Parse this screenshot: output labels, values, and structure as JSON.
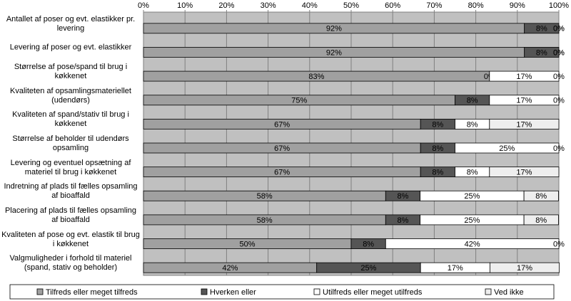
{
  "chart_data": {
    "type": "stacked-bar-horizontal",
    "categories": [
      "Antallet af poser og evt. elastikker pr. levering",
      "Levering af poser og evt. elastikker",
      "Størrelse af pose/spand til brug i køkkenet",
      "Kvaliteten af opsamlingsmateriellet (udendørs)",
      "Kvaliteten af spand/stativ til brug i køkkenet",
      "Størrelse af beholder til udendørs opsamling",
      "Levering og eventuel opsætning af materiel til brug i køkkenet",
      "Indretning af plads til fælles opsamling af bioaffald",
      "Placering af plads til fælles opsamling af bioaffald",
      "Kvaliteten af pose og evt. elastik til brug i køkkenet",
      "Valgmuligheder i forhold til materiel (spand, stativ og beholder)"
    ],
    "series": [
      {
        "name": "Tilfreds eller meget tilfreds",
        "color": "#a0a0a0",
        "values": [
          91.7,
          91.7,
          83.3,
          75,
          66.7,
          66.7,
          66.7,
          58.3,
          58.3,
          50,
          41.7
        ],
        "value_labels": [
          "92%",
          "92%",
          "83%",
          "75%",
          "67%",
          "67%",
          "67%",
          "58%",
          "58%",
          "50%",
          "42%"
        ]
      },
      {
        "name": "Hverken eller",
        "color": "#555555",
        "values": [
          8.3,
          8.3,
          0,
          8.3,
          8.3,
          8.3,
          8.3,
          8.3,
          8.3,
          8.3,
          25
        ],
        "value_labels": [
          "8%",
          "8%",
          "0%",
          "8%",
          "8%",
          "8%",
          "8%",
          "8%",
          "8%",
          "8%",
          "25%"
        ]
      },
      {
        "name": "Utilfreds eller meget utilfreds",
        "color": "#ffffff",
        "values": [
          0,
          0,
          16.7,
          16.7,
          8.3,
          25,
          8.3,
          25,
          25,
          41.7,
          16.7
        ],
        "value_labels": [
          "0%",
          "0%",
          "17%",
          "17%",
          "8%",
          "25%",
          "8%",
          "25%",
          "25%",
          "42%",
          "17%"
        ]
      },
      {
        "name": "Ved ikke",
        "color": "#eeeeee",
        "values": [
          0,
          0,
          0,
          0,
          16.7,
          0,
          16.7,
          8.3,
          8.3,
          0,
          16.7
        ],
        "value_labels": [
          "0%",
          "0%",
          "0%",
          "0%",
          "17%",
          "0%",
          "17%",
          "8%",
          "8%",
          "0%",
          "17%"
        ]
      }
    ],
    "xlim": [
      0,
      100
    ],
    "xticks": [
      {
        "value": 0,
        "label": "0%"
      },
      {
        "value": 10,
        "label": "10%"
      },
      {
        "value": 20,
        "label": "20%"
      },
      {
        "value": 30,
        "label": "30%"
      },
      {
        "value": 40,
        "label": "40%"
      },
      {
        "value": 50,
        "label": "50%"
      },
      {
        "value": 60,
        "label": "60%"
      },
      {
        "value": 70,
        "label": "70%"
      },
      {
        "value": 80,
        "label": "80%"
      },
      {
        "value": 90,
        "label": "90%"
      },
      {
        "value": 100,
        "label": "100%"
      }
    ],
    "grid": true,
    "legend": "bottom"
  }
}
